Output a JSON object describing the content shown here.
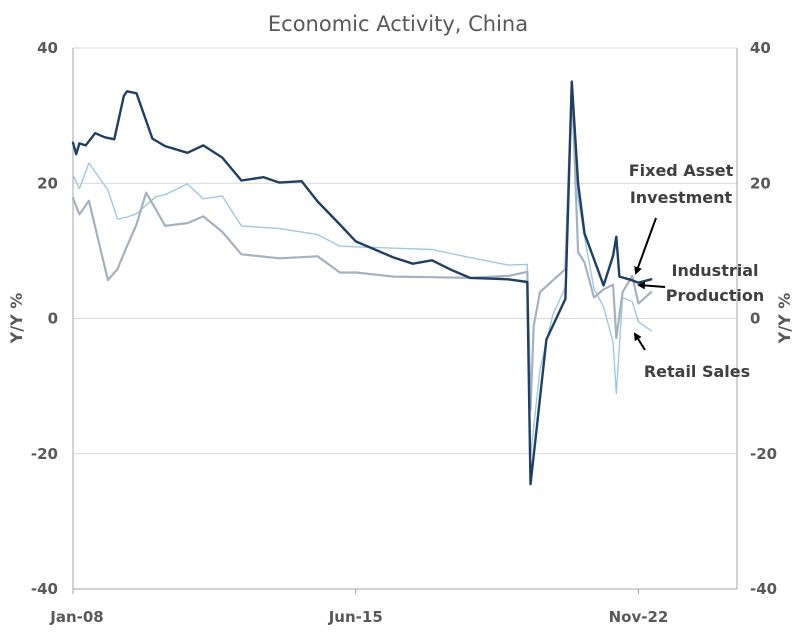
{
  "chart_data": {
    "type": "line",
    "title": "Economic Activity, China",
    "ylabel_left": "Y/Y  %",
    "ylabel_right": "Y/Y  %",
    "ylim": [
      -40,
      40
    ],
    "yticks": [
      "40",
      "20",
      "0",
      "-20",
      "-40"
    ],
    "x_ticks": [
      "Jan-08",
      "Jun-15",
      "Nov-22"
    ],
    "x_range_months": [
      "2008-01",
      "2025-06"
    ],
    "grid": true,
    "legend": "none (direct annotations with arrows)",
    "annotations": [
      {
        "lines": [
          "Fixed Asset",
          "Investment"
        ],
        "series": "Fixed Asset Investment"
      },
      {
        "lines": [
          "Industrial",
          "Production"
        ],
        "series": "Industrial Production"
      },
      {
        "lines": [
          "Retail Sales"
        ],
        "series": "Retail Sales"
      }
    ],
    "series": [
      {
        "name": "Fixed Asset Investment",
        "color": "#1f3f66",
        "points": [
          [
            "2008-01",
            26
          ],
          [
            "2008-02",
            24.3
          ],
          [
            "2008-03",
            25.9
          ],
          [
            "2008-05",
            25.6
          ],
          [
            "2008-08",
            27.4
          ],
          [
            "2008-11",
            26.8
          ],
          [
            "2009-02",
            26.5
          ],
          [
            "2009-05",
            32.9
          ],
          [
            "2009-06",
            33.6
          ],
          [
            "2009-09",
            33.3
          ],
          [
            "2010-02",
            26.6
          ],
          [
            "2010-06",
            25.5
          ],
          [
            "2011-01",
            24.5
          ],
          [
            "2011-06",
            25.6
          ],
          [
            "2011-12",
            23.8
          ],
          [
            "2012-06",
            20.4
          ],
          [
            "2013-01",
            20.9
          ],
          [
            "2013-06",
            20.1
          ],
          [
            "2014-01",
            20.3
          ],
          [
            "2014-06",
            17.3
          ],
          [
            "2015-01",
            13.9
          ],
          [
            "2015-06",
            11.4
          ],
          [
            "2016-01",
            10.0
          ],
          [
            "2016-06",
            9.0
          ],
          [
            "2016-12",
            8.1
          ],
          [
            "2017-06",
            8.6
          ],
          [
            "2017-12",
            7.2
          ],
          [
            "2018-06",
            6.0
          ],
          [
            "2018-12",
            5.9
          ],
          [
            "2019-06",
            5.8
          ],
          [
            "2019-12",
            5.4
          ],
          [
            "2020-01",
            -24.5
          ],
          [
            "2020-03",
            -16.1
          ],
          [
            "2020-06",
            -3.1
          ],
          [
            "2020-12",
            2.9
          ],
          [
            "2021-02",
            35
          ],
          [
            "2021-04",
            20
          ],
          [
            "2021-06",
            12.6
          ],
          [
            "2021-12",
            4.9
          ],
          [
            "2022-03",
            9.3
          ],
          [
            "2022-04",
            12.1
          ],
          [
            "2022-05",
            6.2
          ],
          [
            "2022-08",
            5.8
          ],
          [
            "2022-11",
            5.3
          ],
          [
            "2023-03",
            5.8
          ]
        ]
      },
      {
        "name": "Industrial Production",
        "color": "#a6b1bf",
        "points": [
          [
            "2008-01",
            17.8
          ],
          [
            "2008-03",
            15.4
          ],
          [
            "2008-06",
            17.4
          ],
          [
            "2008-12",
            5.7
          ],
          [
            "2009-03",
            7.3
          ],
          [
            "2009-06",
            10.7
          ],
          [
            "2009-09",
            13.9
          ],
          [
            "2009-12",
            18.6
          ],
          [
            "2010-03",
            16.2
          ],
          [
            "2010-06",
            13.7
          ],
          [
            "2011-01",
            14.1
          ],
          [
            "2011-06",
            15.1
          ],
          [
            "2011-12",
            12.8
          ],
          [
            "2012-06",
            9.5
          ],
          [
            "2013-06",
            8.9
          ],
          [
            "2014-06",
            9.2
          ],
          [
            "2015-01",
            6.8
          ],
          [
            "2015-06",
            6.8
          ],
          [
            "2016-06",
            6.2
          ],
          [
            "2017-06",
            6.1
          ],
          [
            "2018-06",
            6.0
          ],
          [
            "2019-06",
            6.3
          ],
          [
            "2019-12",
            6.9
          ],
          [
            "2020-01",
            -13.5
          ],
          [
            "2020-02",
            -1.1
          ],
          [
            "2020-04",
            3.9
          ],
          [
            "2020-12",
            7.3
          ],
          [
            "2021-02",
            35.1
          ],
          [
            "2021-04",
            9.8
          ],
          [
            "2021-06",
            8.3
          ],
          [
            "2021-09",
            3.1
          ],
          [
            "2021-12",
            4.3
          ],
          [
            "2022-03",
            5.0
          ],
          [
            "2022-04",
            -2.9
          ],
          [
            "2022-06",
            3.9
          ],
          [
            "2022-09",
            6.3
          ],
          [
            "2022-11",
            2.2
          ],
          [
            "2023-03",
            3.9
          ]
        ]
      },
      {
        "name": "Retail Sales",
        "color": "#9ecae1",
        "points": [
          [
            "2008-01",
            21.2
          ],
          [
            "2008-03",
            19.2
          ],
          [
            "2008-06",
            23.0
          ],
          [
            "2008-12",
            19.0
          ],
          [
            "2009-03",
            14.7
          ],
          [
            "2009-06",
            15.0
          ],
          [
            "2009-09",
            15.5
          ],
          [
            "2010-03",
            18.0
          ],
          [
            "2010-06",
            18.3
          ],
          [
            "2011-01",
            19.9
          ],
          [
            "2011-06",
            17.7
          ],
          [
            "2011-12",
            18.1
          ],
          [
            "2012-06",
            13.7
          ],
          [
            "2013-06",
            13.3
          ],
          [
            "2014-06",
            12.4
          ],
          [
            "2015-01",
            10.7
          ],
          [
            "2015-06",
            10.6
          ],
          [
            "2016-06",
            10.4
          ],
          [
            "2017-06",
            10.2
          ],
          [
            "2018-06",
            9.0
          ],
          [
            "2019-06",
            7.9
          ],
          [
            "2019-12",
            8.0
          ],
          [
            "2020-01",
            -20.5
          ],
          [
            "2020-04",
            -7.5
          ],
          [
            "2020-08",
            0.5
          ],
          [
            "2020-12",
            4.6
          ],
          [
            "2021-02",
            33.8
          ],
          [
            "2021-04",
            17.7
          ],
          [
            "2021-06",
            12.1
          ],
          [
            "2021-09",
            4.4
          ],
          [
            "2021-12",
            1.7
          ],
          [
            "2022-03",
            -3.5
          ],
          [
            "2022-04",
            -11.1
          ],
          [
            "2022-06",
            3.1
          ],
          [
            "2022-09",
            2.5
          ],
          [
            "2022-11",
            -0.5
          ],
          [
            "2023-03",
            -1.8
          ]
        ]
      }
    ]
  }
}
